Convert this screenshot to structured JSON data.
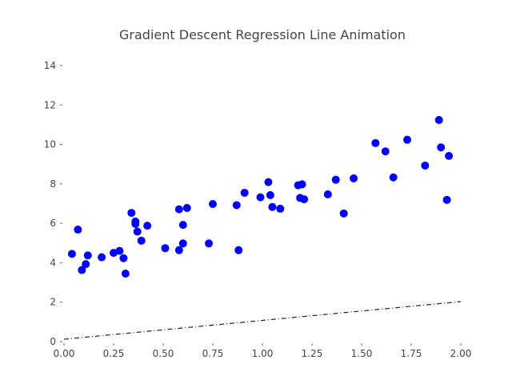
{
  "chart_data": {
    "type": "scatter",
    "title": "Gradient Descent Regression Line Animation",
    "xlabel": "",
    "ylabel": "",
    "xlim": [
      0.0,
      2.0
    ],
    "ylim": [
      0,
      14
    ],
    "x_ticks": [
      "0.00",
      "0.25",
      "0.50",
      "0.75",
      "1.00",
      "1.25",
      "1.50",
      "1.75",
      "2.00"
    ],
    "y_ticks": [
      "0",
      "2",
      "4",
      "6",
      "8",
      "10",
      "12",
      "14"
    ],
    "grid": false,
    "colors": {
      "points": "#0000ff",
      "line": "#222222"
    },
    "series": [
      {
        "type": "scatter",
        "points": [
          [
            0.04,
            4.45
          ],
          [
            0.07,
            5.68
          ],
          [
            0.09,
            3.63
          ],
          [
            0.11,
            3.93
          ],
          [
            0.12,
            4.37
          ],
          [
            0.19,
            4.28
          ],
          [
            0.25,
            4.5
          ],
          [
            0.28,
            4.6
          ],
          [
            0.3,
            4.23
          ],
          [
            0.31,
            3.45
          ],
          [
            0.34,
            6.53
          ],
          [
            0.36,
            6.09
          ],
          [
            0.36,
            5.97
          ],
          [
            0.37,
            5.58
          ],
          [
            0.39,
            5.12
          ],
          [
            0.42,
            5.88
          ],
          [
            0.51,
            4.74
          ],
          [
            0.58,
            6.71
          ],
          [
            0.58,
            4.64
          ],
          [
            0.6,
            4.98
          ],
          [
            0.6,
            5.92
          ],
          [
            0.62,
            6.78
          ],
          [
            0.73,
            4.98
          ],
          [
            0.75,
            6.98
          ],
          [
            0.87,
            6.92
          ],
          [
            0.88,
            4.64
          ],
          [
            0.91,
            7.55
          ],
          [
            0.99,
            7.32
          ],
          [
            1.03,
            8.09
          ],
          [
            1.04,
            7.43
          ],
          [
            1.05,
            6.83
          ],
          [
            1.09,
            6.74
          ],
          [
            1.18,
            7.93
          ],
          [
            1.19,
            7.29
          ],
          [
            1.2,
            7.98
          ],
          [
            1.21,
            7.22
          ],
          [
            1.33,
            7.47
          ],
          [
            1.37,
            8.21
          ],
          [
            1.41,
            6.5
          ],
          [
            1.46,
            8.28
          ],
          [
            1.57,
            10.07
          ],
          [
            1.62,
            9.65
          ],
          [
            1.66,
            8.33
          ],
          [
            1.73,
            10.24
          ],
          [
            1.82,
            8.93
          ],
          [
            1.89,
            11.24
          ],
          [
            1.9,
            9.85
          ],
          [
            1.93,
            7.19
          ],
          [
            1.94,
            9.42
          ]
        ]
      },
      {
        "type": "line",
        "style": "dash-dot",
        "x": [
          0.0,
          2.0
        ],
        "y": [
          0.12,
          2.03
        ]
      }
    ]
  }
}
